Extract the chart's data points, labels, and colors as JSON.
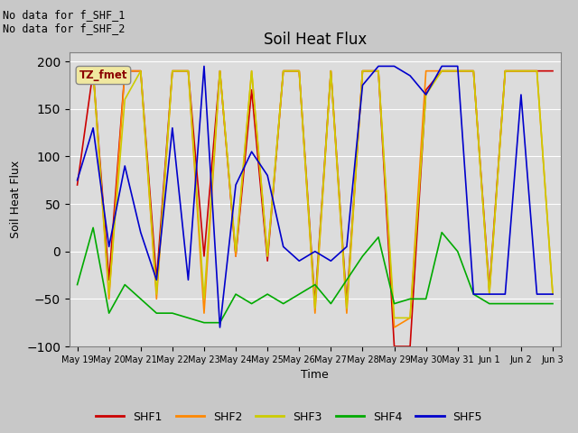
{
  "title": "Soil Heat Flux",
  "xlabel": "Time",
  "ylabel": "Soil Heat Flux",
  "ylim": [
    -100,
    210
  ],
  "yticks": [
    -100,
    -50,
    0,
    50,
    100,
    150,
    200
  ],
  "annotation_text": "No data for f_SHF_1\nNo data for f_SHF_2",
  "tz_label": "TZ_fmet",
  "plot_bg_color": "#dcdcdc",
  "fig_bg_color": "#c8c8c8",
  "legend_entries": [
    "SHF1",
    "SHF2",
    "SHF3",
    "SHF4",
    "SHF5"
  ],
  "colors": {
    "SHF1": "#cc0000",
    "SHF2": "#ff8800",
    "SHF3": "#cccc00",
    "SHF4": "#00aa00",
    "SHF5": "#0000cc"
  },
  "x_labels": [
    "May 19",
    "May 20",
    "May 21",
    "May 22",
    "May 23",
    "May 24",
    "May 25",
    "May 26",
    "May 27",
    "May 28",
    "May 29",
    "May 30",
    "May 31",
    "Jun 1",
    "Jun 2",
    "Jun 3"
  ],
  "x_tick_positions": [
    0,
    2,
    4,
    6,
    8,
    10,
    12,
    14,
    16,
    18,
    20,
    22,
    24,
    26,
    28,
    30
  ],
  "SHF1": [
    70,
    190,
    -30,
    190,
    190,
    -30,
    190,
    190,
    -5,
    190,
    -5,
    170,
    -10,
    190,
    190,
    -55,
    190,
    -55,
    190,
    190,
    -100,
    -100,
    170,
    190,
    190,
    190,
    -40,
    190,
    190,
    190,
    190
  ],
  "SHF2": [
    190,
    190,
    -50,
    190,
    190,
    -50,
    190,
    190,
    -65,
    190,
    -5,
    190,
    -5,
    190,
    190,
    -65,
    190,
    -65,
    190,
    190,
    -80,
    -70,
    190,
    190,
    190,
    190,
    -45,
    190,
    190,
    190,
    -45
  ],
  "SHF3": [
    190,
    190,
    -45,
    160,
    190,
    -45,
    190,
    190,
    -50,
    190,
    0,
    190,
    -5,
    190,
    190,
    -60,
    190,
    -60,
    190,
    190,
    -70,
    -70,
    165,
    190,
    190,
    190,
    -45,
    190,
    190,
    190,
    -45
  ],
  "SHF4": [
    -35,
    25,
    -65,
    -35,
    -50,
    -65,
    -65,
    -70,
    -75,
    -75,
    -45,
    -55,
    -45,
    -55,
    -45,
    -35,
    -55,
    -30,
    -5,
    15,
    -55,
    -50,
    -50,
    20,
    0,
    -45,
    -55,
    -55,
    -55,
    -55,
    -55
  ],
  "SHF5": [
    75,
    130,
    5,
    90,
    20,
    -30,
    130,
    -30,
    195,
    -80,
    70,
    105,
    80,
    5,
    -10,
    0,
    -10,
    5,
    175,
    195,
    195,
    185,
    165,
    195,
    195,
    -45,
    -45,
    -45,
    165,
    -45,
    -45
  ]
}
